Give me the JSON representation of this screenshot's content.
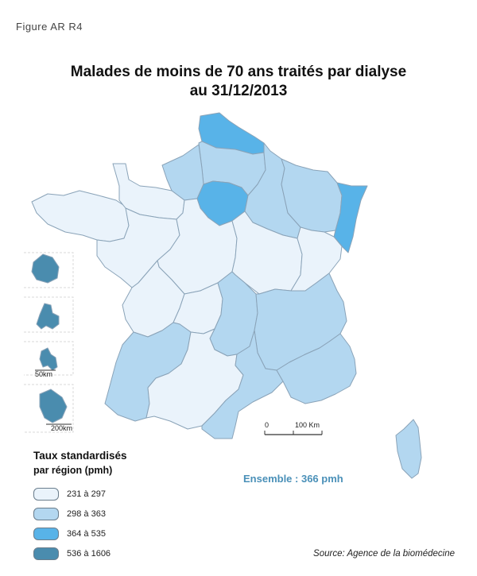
{
  "figure_label": "Figure AR R4",
  "title_line1": "Malades de moins de 70 ans traités par dialyse",
  "title_line2": "au 31/12/2013",
  "legend": {
    "title_line1": "Taux standardisés",
    "title_line2": "par région (pmh)",
    "classes": [
      {
        "label": "231 à 297",
        "color": "#eaf3fb"
      },
      {
        "label": "298 à 363",
        "color": "#b3d7f0"
      },
      {
        "label": "364 à 535",
        "color": "#58b3e8"
      },
      {
        "label": "536 à 1606",
        "color": "#4a8cae"
      }
    ]
  },
  "ensemble": "Ensemble : 366 pmh",
  "source": "Source: Agence de la biomédecine",
  "scale_bar": {
    "zero": "0",
    "max": "100 Km"
  },
  "inset_scales": {
    "small": "50km",
    "large": "200km"
  },
  "regions": {
    "nord_pas_de_calais": {
      "class": "364 à 535"
    },
    "picardie": {
      "class": "298 à 363"
    },
    "haute_normandie": {
      "class": "298 à 363"
    },
    "ile_de_france": {
      "class": "364 à 535"
    },
    "champagne_ardenne": {
      "class": "298 à 363"
    },
    "lorraine": {
      "class": "298 à 363"
    },
    "alsace": {
      "class": "364 à 535"
    },
    "bretagne": {
      "class": "231 à 297"
    },
    "basse_normandie": {
      "class": "231 à 297"
    },
    "pays_de_la_loire": {
      "class": "231 à 297"
    },
    "centre": {
      "class": "231 à 297"
    },
    "bourgogne": {
      "class": "231 à 297"
    },
    "franche_comte": {
      "class": "231 à 297"
    },
    "poitou_charentes": {
      "class": "231 à 297"
    },
    "limousin": {
      "class": "231 à 297"
    },
    "auvergne": {
      "class": "298 à 363"
    },
    "rhone_alpes": {
      "class": "298 à 363"
    },
    "aquitaine": {
      "class": "298 à 363"
    },
    "midi_pyrenees": {
      "class": "231 à 297"
    },
    "languedoc_roussillon": {
      "class": "298 à 363"
    },
    "paca": {
      "class": "298 à 363"
    },
    "corse": {
      "class": "298 à 363"
    },
    "reunion": {
      "class": "536 à 1606"
    },
    "martinique": {
      "class": "536 à 1606"
    },
    "guadeloupe": {
      "class": "536 à 1606"
    },
    "guyane": {
      "class": "536 à 1606"
    }
  }
}
